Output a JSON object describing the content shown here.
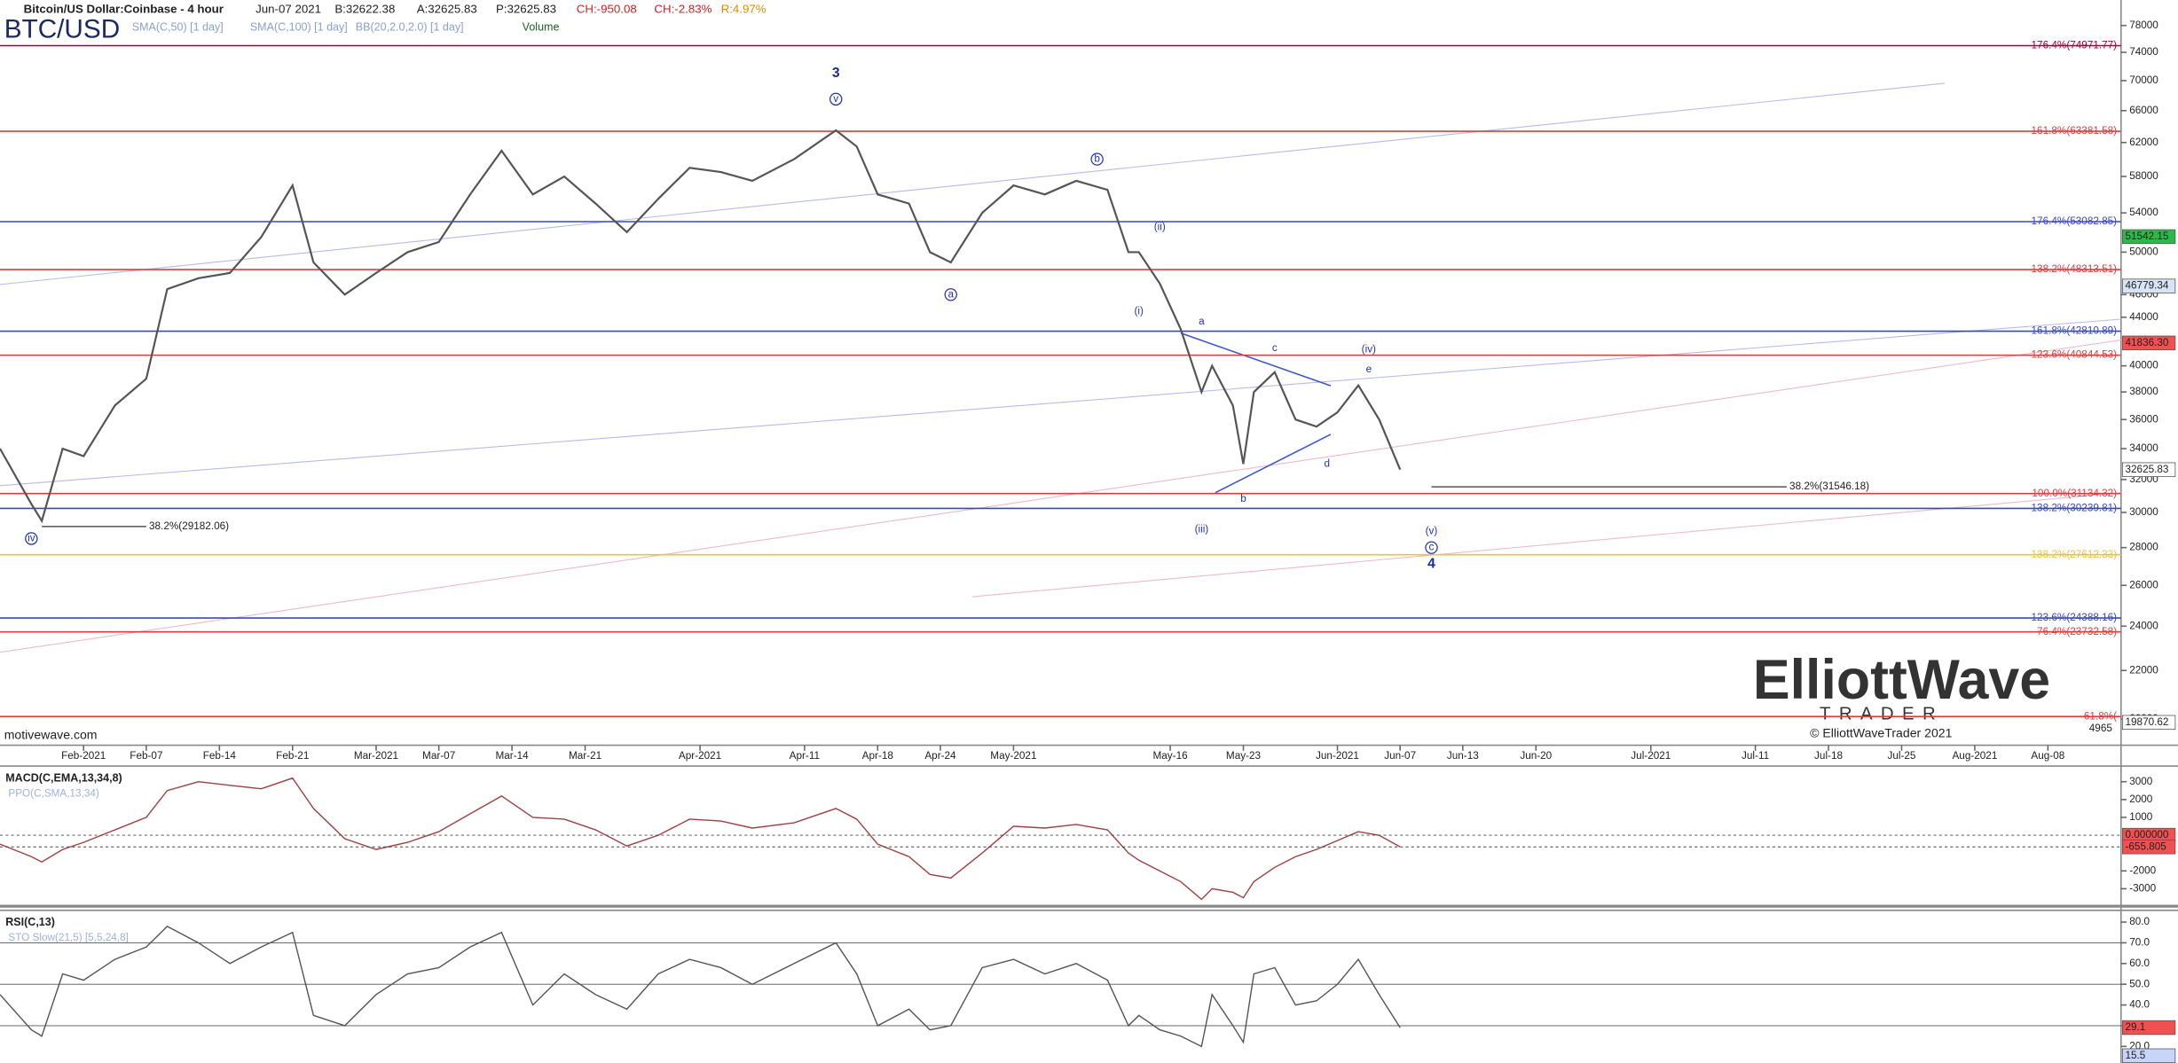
{
  "header": {
    "symbol": "Bitcoin/US Dollar:Coinbase - 4 hour",
    "date": "Jun-07 2021",
    "bid": "B:32622.38",
    "ask": "A:32625.83",
    "price": "P:32625.83",
    "change": "CH:-950.08",
    "change_pct": "CH:-2.83%",
    "range": "R:4.97%",
    "ticker": "BTC/USD",
    "indicators": [
      "SMA(C,50) [1 day]",
      "SMA(C,100) [1 day]",
      "BB(20,2.0,2.0) [1 day]",
      "Volume"
    ]
  },
  "chart_data": [
    {
      "type": "line",
      "color": "#555555",
      "log": true,
      "grid": false,
      "x": [
        "2021-01-24",
        "2021-01-27",
        "2021-01-28",
        "2021-01-30",
        "2021-02-01",
        "2021-02-04",
        "2021-02-07",
        "2021-02-09",
        "2021-02-12",
        "2021-02-15",
        "2021-02-18",
        "2021-02-21",
        "2021-02-23",
        "2021-02-26",
        "2021-03-01",
        "2021-03-04",
        "2021-03-07",
        "2021-03-10",
        "2021-03-13",
        "2021-03-16",
        "2021-03-19",
        "2021-03-22",
        "2021-03-25",
        "2021-03-28",
        "2021-03-31",
        "2021-04-03",
        "2021-04-06",
        "2021-04-10",
        "2021-04-14",
        "2021-04-16",
        "2021-04-18",
        "2021-04-21",
        "2021-04-23",
        "2021-04-25",
        "2021-04-28",
        "2021-05-01",
        "2021-05-04",
        "2021-05-07",
        "2021-05-10",
        "2021-05-12",
        "2021-05-13",
        "2021-05-15",
        "2021-05-17",
        "2021-05-19",
        "2021-05-20",
        "2021-05-22",
        "2021-05-23",
        "2021-05-24",
        "2021-05-26",
        "2021-05-28",
        "2021-05-30",
        "2021-06-01",
        "2021-06-03",
        "2021-06-05",
        "2021-06-07"
      ],
      "values": [
        34000,
        30500,
        29500,
        34000,
        33500,
        37000,
        39000,
        46500,
        47500,
        48000,
        51500,
        57000,
        49000,
        46000,
        48000,
        50000,
        51000,
        56000,
        61000,
        56000,
        58000,
        55000,
        52000,
        55500,
        59000,
        58500,
        57500,
        60000,
        63500,
        61500,
        56000,
        55000,
        50000,
        49000,
        54000,
        57000,
        56000,
        57500,
        56500,
        50000,
        50000,
        47000,
        43000,
        38000,
        40000,
        37000,
        33000,
        38000,
        39500,
        36000,
        35500,
        36500,
        38500,
        36000,
        32625.83
      ],
      "xlim": [
        "2021-01-24",
        "2021-08-15"
      ],
      "xticks": [
        {
          "value": "2021-02-01",
          "label": "Feb-2021"
        },
        {
          "value": "2021-02-07",
          "label": "Feb-07"
        },
        {
          "value": "2021-02-14",
          "label": "Feb-14"
        },
        {
          "value": "2021-02-21",
          "label": "Feb-21"
        },
        {
          "value": "2021-03-01",
          "label": "Mar-2021"
        },
        {
          "value": "2021-03-07",
          "label": "Mar-07"
        },
        {
          "value": "2021-03-14",
          "label": "Mar-14"
        },
        {
          "value": "2021-03-21",
          "label": "Mar-21"
        },
        {
          "value": "2021-04-01",
          "label": "Apr-2021"
        },
        {
          "value": "2021-04-11",
          "label": "Apr-11"
        },
        {
          "value": "2021-04-18",
          "label": "Apr-18"
        },
        {
          "value": "2021-04-24",
          "label": "Apr-24"
        },
        {
          "value": "2021-05-01",
          "label": "May-2021"
        },
        {
          "value": "2021-05-16",
          "label": "May-16"
        },
        {
          "value": "2021-05-23",
          "label": "May-23"
        },
        {
          "value": "2021-06-01",
          "label": "Jun-2021"
        },
        {
          "value": "2021-06-07",
          "label": "Jun-07"
        },
        {
          "value": "2021-06-13",
          "label": "Jun-13"
        },
        {
          "value": "2021-06-20",
          "label": "Jun-20"
        },
        {
          "value": "2021-07-01",
          "label": "Jul-2021"
        },
        {
          "value": "2021-07-11",
          "label": "Jul-11"
        },
        {
          "value": "2021-07-18",
          "label": "Jul-18"
        },
        {
          "value": "2021-07-25",
          "label": "Jul-25"
        },
        {
          "value": "2021-08-01",
          "label": "Aug-2021"
        },
        {
          "value": "2021-08-08",
          "label": "Aug-08"
        }
      ],
      "ylim": [
        19000,
        82000
      ],
      "yticks": [
        20000,
        22000,
        24000,
        26000,
        28000,
        30000,
        32000,
        34000,
        36000,
        38000,
        40000,
        44000,
        46000,
        50000,
        54000,
        58000,
        62000,
        66000,
        70000,
        74000,
        78000
      ],
      "levels": [
        {
          "label": "176.4%(74971.77)",
          "value": 74971.77,
          "color": "#a0003a"
        },
        {
          "label": "161.8%(63381.58)",
          "value": 63381.58,
          "color": "#e03c3c"
        },
        {
          "label": "176.4%(53082.85)",
          "value": 53082.85,
          "color": "#3a46c8"
        },
        {
          "label": "138.2%(48313.51)",
          "value": 48313.51,
          "color": "#e03c3c"
        },
        {
          "label": "161.8%(42810.89)",
          "value": 42810.89,
          "color": "#3a46c8"
        },
        {
          "label": "123.6%(40844.53)",
          "value": 40844.53,
          "color": "#e03c3c"
        },
        {
          "label": "100.0%(31134.32)",
          "value": 31134.32,
          "color": "#e03c3c"
        },
        {
          "label": "138.2%(30239.81)",
          "value": 30239.81,
          "color": "#3a46c8"
        },
        {
          "label": "138.2%(27612.33)",
          "value": 27612.33,
          "color": "#f0c040"
        },
        {
          "label": "123.6%(24388.16)",
          "value": 24388.16,
          "color": "#3a46c8"
        },
        {
          "label": "76.4%(23732.58)",
          "value": 23732.58,
          "color": "#e03c3c"
        },
        {
          "label": "61.8%(",
          "value": 20100,
          "color": "#e03c3c"
        }
      ],
      "projections": [
        {
          "text": "38.2%(29182.06)",
          "x": [
            "2021-01-28",
            "2021-02-07"
          ],
          "value": 29182.06
        },
        {
          "text": "38.2%(31546.18)",
          "x": [
            "2021-06-10",
            "2021-07-14"
          ],
          "value": 31546.18
        }
      ],
      "waves": [
        {
          "text": "iv",
          "x": "2021-01-27",
          "y": 28500,
          "color": "#2233bb",
          "circled": true,
          "bold": false
        },
        {
          "text": "3",
          "x": "2021-04-14",
          "y": 71000,
          "color": "#1a2a99",
          "circled": false,
          "bold": true
        },
        {
          "text": "v",
          "x": "2021-04-14",
          "y": 67500,
          "color": "#2233bb",
          "circled": true,
          "bold": false
        },
        {
          "text": "a",
          "x": "2021-04-25",
          "y": 46000,
          "color": "#2233bb",
          "circled": true,
          "bold": false
        },
        {
          "text": "b",
          "x": "2021-05-09",
          "y": 60000,
          "color": "#2233bb",
          "circled": true,
          "bold": false
        },
        {
          "text": "(i)",
          "x": "2021-05-13",
          "y": 44500,
          "color": "#2233bb",
          "circled": false,
          "bold": false
        },
        {
          "text": "(ii)",
          "x": "2021-05-15",
          "y": 52500,
          "color": "#2233bb",
          "circled": false,
          "bold": false
        },
        {
          "text": "(iii)",
          "x": "2021-05-19",
          "y": 29000,
          "color": "#2233bb",
          "circled": false,
          "bold": false
        },
        {
          "text": "a",
          "x": "2021-05-19",
          "y": 43600,
          "color": "#2233bb",
          "circled": false,
          "bold": false
        },
        {
          "text": "b",
          "x": "2021-05-23",
          "y": 30800,
          "color": "#2233bb",
          "circled": false,
          "bold": false
        },
        {
          "text": "c",
          "x": "2021-05-26",
          "y": 41400,
          "color": "#2233bb",
          "circled": false,
          "bold": false
        },
        {
          "text": "d",
          "x": "2021-05-31",
          "y": 33000,
          "color": "#2233bb",
          "circled": false,
          "bold": false
        },
        {
          "text": "e",
          "x": "2021-06-04",
          "y": 39700,
          "color": "#2233bb",
          "circled": false,
          "bold": false
        },
        {
          "text": "(iv)",
          "x": "2021-06-04",
          "y": 41300,
          "color": "#2233bb",
          "circled": false,
          "bold": false
        },
        {
          "text": "(v)",
          "x": "2021-06-10",
          "y": 28900,
          "color": "#2233bb",
          "circled": false,
          "bold": false
        },
        {
          "text": "c",
          "x": "2021-06-10",
          "y": 28000,
          "color": "#2233bb",
          "circled": true,
          "bold": false
        },
        {
          "text": "4",
          "x": "2021-06-10",
          "y": 27100,
          "color": "#1a2a99",
          "circled": false,
          "bold": true
        }
      ],
      "axis_tags": [
        {
          "value": 51542.15,
          "label": "51542.15",
          "color": "#2fb84a"
        },
        {
          "value": 46779.34,
          "label": "46779.34",
          "color": "#d6e4f5"
        },
        {
          "value": 41836.3,
          "label": "41836.30",
          "color": "#f05050"
        },
        {
          "value": 32625.83,
          "label": "32625.83",
          "color": "#ffffff"
        },
        {
          "value": 19870.62,
          "label": "19870.62",
          "color": "#ffffff"
        }
      ],
      "volume_label": 4965
    },
    {
      "type": "line",
      "title": "MACD(C,EMA,13,34,8)",
      "subtitle": "PPO(C,SMA,13,34)",
      "color": "#a04040",
      "x": [
        "2021-01-24",
        "2021-01-27",
        "2021-01-28",
        "2021-01-30",
        "2021-02-01",
        "2021-02-04",
        "2021-02-07",
        "2021-02-09",
        "2021-02-12",
        "2021-02-15",
        "2021-02-18",
        "2021-02-21",
        "2021-02-23",
        "2021-02-26",
        "2021-03-01",
        "2021-03-04",
        "2021-03-07",
        "2021-03-10",
        "2021-03-13",
        "2021-03-16",
        "2021-03-19",
        "2021-03-22",
        "2021-03-25",
        "2021-03-28",
        "2021-03-31",
        "2021-04-03",
        "2021-04-06",
        "2021-04-10",
        "2021-04-14",
        "2021-04-16",
        "2021-04-18",
        "2021-04-21",
        "2021-04-23",
        "2021-04-25",
        "2021-04-28",
        "2021-05-01",
        "2021-05-04",
        "2021-05-07",
        "2021-05-10",
        "2021-05-12",
        "2021-05-13",
        "2021-05-15",
        "2021-05-17",
        "2021-05-19",
        "2021-05-20",
        "2021-05-22",
        "2021-05-23",
        "2021-05-24",
        "2021-05-26",
        "2021-05-28",
        "2021-05-30",
        "2021-06-01",
        "2021-06-03",
        "2021-06-05",
        "2021-06-07"
      ],
      "values": [
        -500,
        -1200,
        -1500,
        -800,
        -400,
        300,
        1000,
        2500,
        3000,
        2800,
        2600,
        3200,
        1500,
        -200,
        -800,
        -400,
        200,
        1200,
        2200,
        1000,
        900,
        300,
        -600,
        0,
        900,
        800,
        400,
        700,
        1500,
        900,
        -500,
        -1200,
        -2200,
        -2400,
        -1000,
        500,
        400,
        600,
        300,
        -1000,
        -1400,
        -2000,
        -2600,
        -3600,
        -3000,
        -3200,
        -3500,
        -2600,
        -1800,
        -1200,
        -800,
        -300,
        200,
        0,
        -655.805
      ],
      "xlim": [
        "2021-01-24",
        "2021-08-15"
      ],
      "ylim": [
        -3900,
        3800
      ],
      "yticks": [
        -3000,
        -2000,
        1000,
        2000,
        3000
      ],
      "axis_tags": [
        {
          "value": 0,
          "label": "0.000000",
          "color": "#f05050"
        },
        {
          "value": -655.805,
          "label": "-655.805",
          "color": "#f05050"
        }
      ]
    },
    {
      "type": "line",
      "title": "RSI(C,13)",
      "subtitle": "STO Slow(21,5) [5,5,24,8]",
      "color": "#555555",
      "x": [
        "2021-01-24",
        "2021-01-27",
        "2021-01-28",
        "2021-01-30",
        "2021-02-01",
        "2021-02-04",
        "2021-02-07",
        "2021-02-09",
        "2021-02-12",
        "2021-02-15",
        "2021-02-18",
        "2021-02-21",
        "2021-02-23",
        "2021-02-26",
        "2021-03-01",
        "2021-03-04",
        "2021-03-07",
        "2021-03-10",
        "2021-03-13",
        "2021-03-16",
        "2021-03-19",
        "2021-03-22",
        "2021-03-25",
        "2021-03-28",
        "2021-03-31",
        "2021-04-03",
        "2021-04-06",
        "2021-04-10",
        "2021-04-14",
        "2021-04-16",
        "2021-04-18",
        "2021-04-21",
        "2021-04-23",
        "2021-04-25",
        "2021-04-28",
        "2021-05-01",
        "2021-05-04",
        "2021-05-07",
        "2021-05-10",
        "2021-05-12",
        "2021-05-13",
        "2021-05-15",
        "2021-05-17",
        "2021-05-19",
        "2021-05-20",
        "2021-05-22",
        "2021-05-23",
        "2021-05-24",
        "2021-05-26",
        "2021-05-28",
        "2021-05-30",
        "2021-06-01",
        "2021-06-03",
        "2021-06-05",
        "2021-06-07"
      ],
      "values": [
        45,
        28,
        25,
        55,
        52,
        62,
        68,
        78,
        70,
        60,
        68,
        75,
        35,
        30,
        45,
        55,
        58,
        68,
        75,
        40,
        55,
        45,
        38,
        55,
        62,
        58,
        50,
        60,
        70,
        55,
        30,
        38,
        28,
        30,
        58,
        62,
        55,
        60,
        52,
        30,
        35,
        28,
        25,
        20,
        45,
        30,
        22,
        55,
        58,
        40,
        42,
        50,
        62,
        45,
        29.1
      ],
      "xlim": [
        "2021-01-24",
        "2021-08-15"
      ],
      "ylim": [
        12,
        85
      ],
      "yticks": [
        {
          "value": 20,
          "label": "20.0"
        },
        {
          "value": 30,
          "label": "30.0"
        },
        {
          "value": 40,
          "label": "40.0"
        },
        {
          "value": 50,
          "label": "50.0"
        },
        {
          "value": 60,
          "label": "60.0"
        },
        {
          "value": 70,
          "label": "70.0"
        },
        {
          "value": 80,
          "label": "80.0"
        }
      ],
      "hlines": [
        70,
        50,
        30
      ],
      "axis_tags": [
        {
          "value": 29.1,
          "label": "29.1",
          "color": "#f05050"
        },
        {
          "value": 15.5,
          "label": "15.5",
          "color": "#c8d4f8"
        }
      ]
    }
  ],
  "watermark": {
    "brand": "ElliottWave",
    "sub": "TRADER",
    "copyright": "© ElliottWaveTrader 2021",
    "site": "motivewave.com"
  }
}
